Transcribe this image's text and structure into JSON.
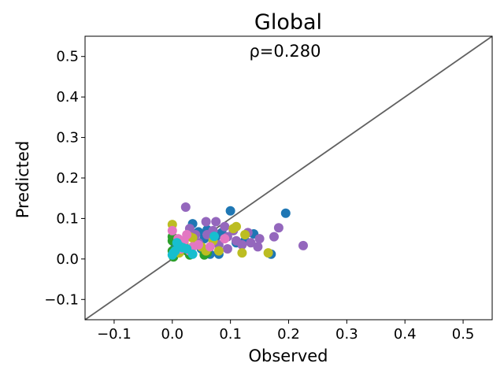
{
  "chart_data": {
    "type": "scatter",
    "title": "Global",
    "annotation": "ρ=0.280",
    "xlabel": "Observed",
    "ylabel": "Predicted",
    "xlim": [
      -0.15,
      0.55
    ],
    "ylim": [
      -0.15,
      0.55
    ],
    "xticks": [
      -0.1,
      0.0,
      0.1,
      0.2,
      0.3,
      0.4,
      0.5
    ],
    "yticks": [
      -0.1,
      0.0,
      0.1,
      0.2,
      0.3,
      0.4,
      0.5
    ],
    "xtick_labels": [
      "−0.1",
      "0.0",
      "0.1",
      "0.2",
      "0.3",
      "0.4",
      "0.5"
    ],
    "ytick_labels": [
      "−0.1",
      "0.0",
      "0.1",
      "0.2",
      "0.3",
      "0.4",
      "0.5"
    ],
    "reference_line": {
      "from": [
        -0.15,
        -0.15
      ],
      "to": [
        0.55,
        0.55
      ],
      "color": "#616161"
    },
    "grid": false,
    "series": [
      {
        "color": "#1f77b4",
        "points": [
          [
            0.035,
            0.087
          ],
          [
            0.045,
            0.067
          ],
          [
            0.06,
            0.072
          ],
          [
            0.065,
            0.012
          ],
          [
            0.08,
            0.012
          ],
          [
            0.1,
            0.119
          ],
          [
            0.14,
            0.062
          ],
          [
            0.195,
            0.113
          ],
          [
            0.17,
            0.012
          ],
          [
            0.03,
            0.02
          ],
          [
            0.055,
            0.05
          ],
          [
            0.075,
            0.055
          ],
          [
            0.11,
            0.04
          ],
          [
            0.005,
            0.03
          ],
          [
            0.05,
            0.025
          ],
          [
            0.085,
            0.065
          ],
          [
            0.125,
            0.045
          ]
        ]
      },
      {
        "color": "#2ca02c",
        "points": [
          [
            0.0,
            0.045
          ],
          [
            0.0,
            0.02
          ],
          [
            0.002,
            0.005
          ],
          [
            0.01,
            0.03
          ],
          [
            0.025,
            0.02
          ],
          [
            0.03,
            0.01
          ],
          [
            0.055,
            0.01
          ],
          [
            0.06,
            0.015
          ],
          [
            0.0,
            0.055
          ],
          [
            0.015,
            0.04
          ]
        ]
      },
      {
        "color": "#9467bd",
        "points": [
          [
            0.023,
            0.128
          ],
          [
            0.03,
            0.075
          ],
          [
            0.045,
            0.04
          ],
          [
            0.058,
            0.092
          ],
          [
            0.07,
            0.07
          ],
          [
            0.075,
            0.092
          ],
          [
            0.09,
            0.08
          ],
          [
            0.095,
            0.055
          ],
          [
            0.11,
            0.045
          ],
          [
            0.12,
            0.035
          ],
          [
            0.13,
            0.065
          ],
          [
            0.15,
            0.05
          ],
          [
            0.175,
            0.055
          ],
          [
            0.183,
            0.077
          ],
          [
            0.225,
            0.033
          ],
          [
            0.147,
            0.03
          ],
          [
            0.095,
            0.025
          ],
          [
            0.06,
            0.06
          ],
          [
            0.135,
            0.04
          ],
          [
            0.08,
            0.035
          ],
          [
            0.04,
            0.06
          ],
          [
            0.105,
            0.07
          ]
        ]
      },
      {
        "color": "#bcbd22",
        "points": [
          [
            0.0,
            0.085
          ],
          [
            0.012,
            0.015
          ],
          [
            0.03,
            0.055
          ],
          [
            0.035,
            0.052
          ],
          [
            0.05,
            0.03
          ],
          [
            0.058,
            0.02
          ],
          [
            0.08,
            0.02
          ],
          [
            0.105,
            0.075
          ],
          [
            0.11,
            0.08
          ],
          [
            0.12,
            0.015
          ],
          [
            0.125,
            0.06
          ],
          [
            0.165,
            0.015
          ],
          [
            0.02,
            0.04
          ],
          [
            0.07,
            0.045
          ]
        ]
      },
      {
        "color": "#e377c2",
        "points": [
          [
            0.0,
            0.07
          ],
          [
            0.01,
            0.05
          ],
          [
            0.02,
            0.045
          ],
          [
            0.03,
            0.02
          ],
          [
            0.035,
            0.03
          ],
          [
            0.045,
            0.035
          ],
          [
            0.065,
            0.03
          ],
          [
            0.09,
            0.05
          ],
          [
            0.025,
            0.06
          ],
          [
            0.015,
            0.025
          ]
        ]
      },
      {
        "color": "#17becf",
        "points": [
          [
            0.0,
            0.01
          ],
          [
            0.005,
            0.02
          ],
          [
            0.012,
            0.032
          ],
          [
            0.018,
            0.028
          ],
          [
            0.025,
            0.025
          ],
          [
            0.035,
            0.012
          ],
          [
            0.072,
            0.056
          ],
          [
            0.002,
            0.015
          ],
          [
            0.008,
            0.04
          ]
        ]
      }
    ]
  }
}
